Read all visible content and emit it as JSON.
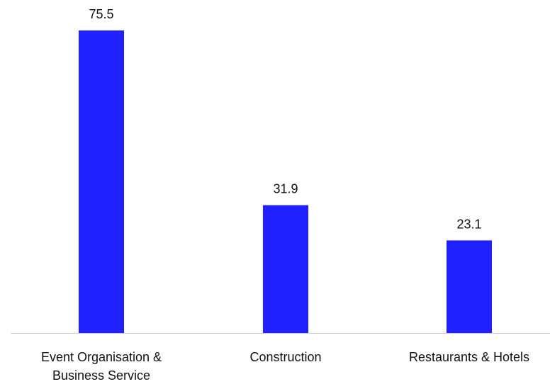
{
  "chart_data": {
    "type": "bar",
    "categories": [
      [
        "Event Organisation &",
        "Business Service"
      ],
      [
        "Construction"
      ],
      [
        "Restaurants & Hotels"
      ]
    ],
    "values": [
      75.5,
      31.9,
      23.1
    ],
    "value_labels": [
      "75.5",
      "31.9",
      "23.1"
    ],
    "title": "",
    "xlabel": "",
    "ylabel": "",
    "ylim": [
      0,
      75.5
    ],
    "grid": false,
    "legend": "none",
    "y_axis_visible": false,
    "bar_color": "#2121ff",
    "axis_color": "#cccccc"
  }
}
